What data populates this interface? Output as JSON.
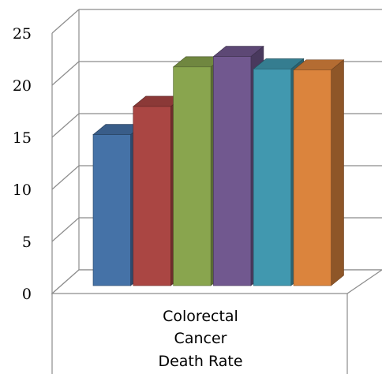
{
  "chart_data": {
    "type": "bar",
    "style": "3d-clustered-column",
    "categories": [
      "Colorectal Cancer Death Rate"
    ],
    "category_label_lines": [
      "Colorectal",
      "Cancer",
      "Death Rate"
    ],
    "series": [
      {
        "values": [
          14.5
        ],
        "color": "#4572a7"
      },
      {
        "values": [
          17.2
        ],
        "color": "#aa4643"
      },
      {
        "values": [
          21.0
        ],
        "color": "#89a54e"
      },
      {
        "values": [
          22.0
        ],
        "color": "#71588f"
      },
      {
        "values": [
          20.8
        ],
        "color": "#4198af"
      },
      {
        "values": [
          20.7
        ],
        "color": "#db843d"
      }
    ],
    "yticks": [
      0,
      5,
      10,
      15,
      20,
      25
    ],
    "ylim": [
      0,
      25
    ],
    "grid": true,
    "legend": "none"
  }
}
